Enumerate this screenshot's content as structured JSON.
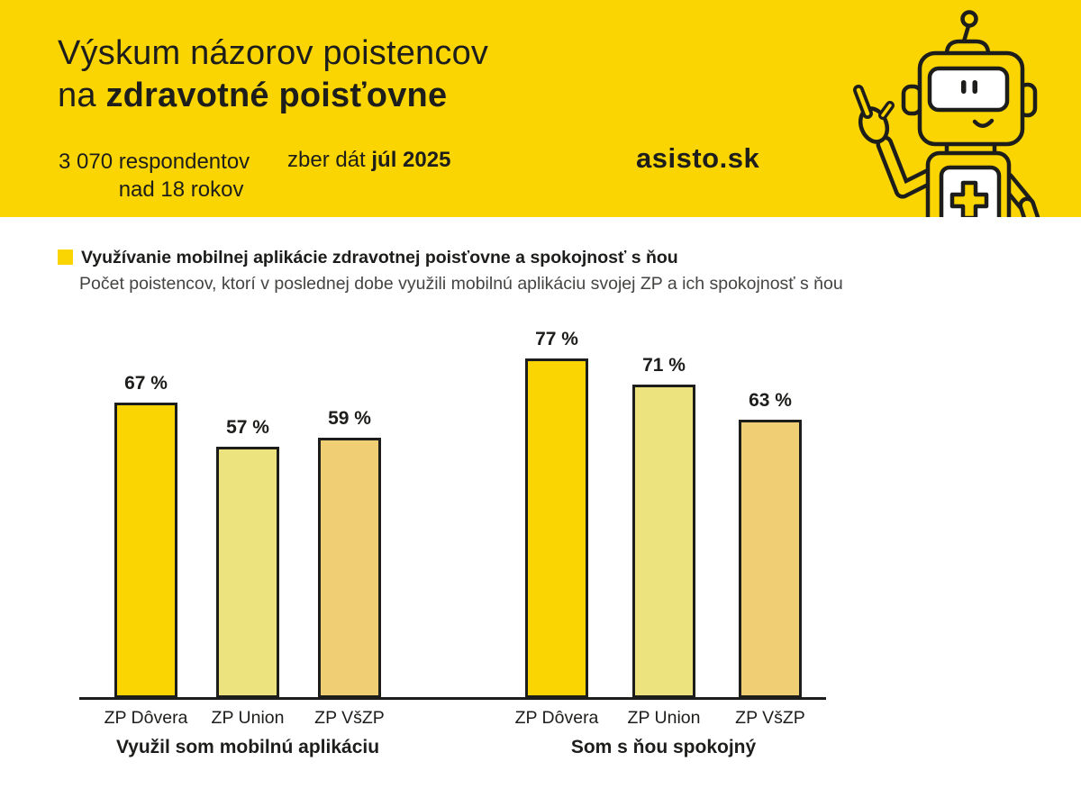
{
  "header": {
    "title_line1": "Výskum názorov poistencov",
    "title_line2_prefix": "na ",
    "title_line2_bold": "zdravotné poisťovne",
    "respondents_line1": "3 070 respondentov",
    "respondents_line2": "nad 18 rokov",
    "collection_prefix": "zber dát ",
    "collection_bold": "júl 2025",
    "brand": "asisto.sk",
    "background_color": "#FAD502",
    "mascot_icon": "robot-mascot"
  },
  "chart_data": {
    "type": "bar",
    "title": "Využívanie mobilnej aplikácie zdravotnej poisťovne a spokojnosť s ňou",
    "subtitle": "Počet poistencov, ktorí v poslednej dobe využili mobilnú aplikáciu svojej ZP a ich spokojnosť s ňou",
    "unit": "%",
    "value_suffix": " %",
    "ylim": [
      0,
      100
    ],
    "grid": false,
    "legend_position": "top-left",
    "ink_color": "#1D1D1B",
    "bar_colors": [
      "#FAD502",
      "#ECE27E",
      "#F0CE73"
    ],
    "categories": [
      "ZP Dôvera",
      "ZP Union",
      "ZP VšZP"
    ],
    "groups": [
      {
        "label": "Využil som mobilnú aplikáciu",
        "categories": [
          "ZP Dôvera",
          "ZP Union",
          "ZP VšZP"
        ],
        "values": [
          67,
          57,
          59
        ]
      },
      {
        "label": "Som s ňou spokojný",
        "categories": [
          "ZP Dôvera",
          "ZP Union",
          "ZP VšZP"
        ],
        "values": [
          77,
          71,
          63
        ]
      }
    ]
  }
}
